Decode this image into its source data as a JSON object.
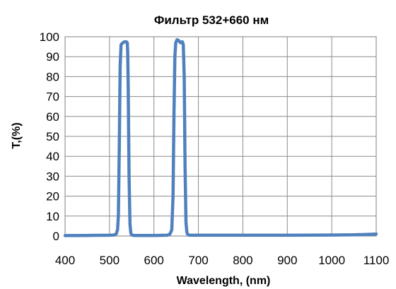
{
  "chart_data": {
    "type": "line",
    "title": "Фильтр 532+660 нм",
    "xlabel": "Wavelength, (nm)",
    "ylabel": "T,(%)",
    "xlim": [
      400,
      1100
    ],
    "ylim": [
      0,
      100
    ],
    "xticks": [
      400,
      500,
      600,
      700,
      800,
      900,
      1000,
      1100
    ],
    "yticks": [
      0,
      10,
      20,
      30,
      40,
      50,
      60,
      70,
      80,
      90,
      100
    ],
    "grid": true,
    "legend": "none",
    "series": [
      {
        "color": "#4f81bd",
        "x": [
          400,
          450,
          500,
          510,
          515,
          518,
          520,
          522,
          524,
          526,
          530,
          534,
          538,
          540,
          541,
          542,
          544,
          546,
          548,
          550,
          555,
          560,
          600,
          630,
          636,
          640,
          643,
          645,
          647,
          649,
          652,
          656,
          660,
          664,
          666,
          668,
          670,
          672,
          674,
          676,
          680,
          700,
          800,
          900,
          1000,
          1050,
          1080,
          1100
        ],
        "y": [
          0.2,
          0.3,
          0.4,
          0.5,
          1,
          3,
          10,
          45,
          85,
          96,
          97,
          97.5,
          97.5,
          97,
          92,
          75,
          30,
          6,
          1.5,
          0.5,
          0.3,
          0.3,
          0.3,
          0.4,
          1,
          3,
          20,
          60,
          90,
          97,
          98.5,
          98,
          97,
          97.5,
          96,
          80,
          35,
          7,
          2,
          0.7,
          0.4,
          0.4,
          0.4,
          0.4,
          0.5,
          0.6,
          0.8,
          1
        ]
      }
    ]
  }
}
